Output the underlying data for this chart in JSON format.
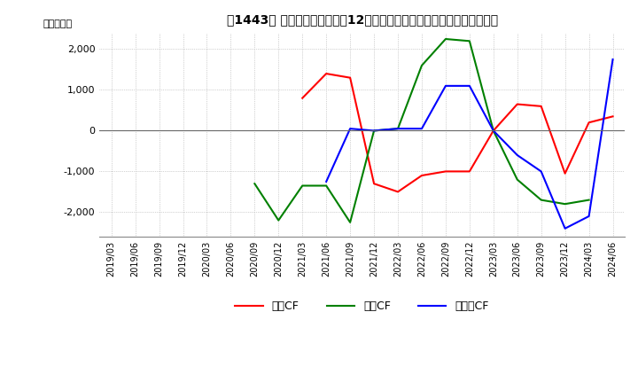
{
  "title": "　1443、 キャッシュフローの12か月移動合計の対前年同期増減額の推移",
  "ylabel": "（百万円）",
  "ylim": [
    -2600,
    2400
  ],
  "yticks": [
    -2000,
    -1000,
    0,
    1000,
    2000
  ],
  "dates": [
    "2019/03",
    "2019/06",
    "2019/09",
    "2019/12",
    "2020/03",
    "2020/06",
    "2020/09",
    "2020/12",
    "2021/03",
    "2021/06",
    "2021/09",
    "2021/12",
    "2022/03",
    "2022/06",
    "2022/09",
    "2022/12",
    "2023/03",
    "2023/06",
    "2023/09",
    "2023/12",
    "2024/03",
    "2024/06"
  ],
  "operating_cf": [
    null,
    null,
    null,
    null,
    null,
    null,
    null,
    null,
    800,
    1400,
    1300,
    -1300,
    -1500,
    -1100,
    -1000,
    -1000,
    0,
    650,
    600,
    -1050,
    200,
    350
  ],
  "investing_cf": [
    null,
    null,
    null,
    null,
    null,
    null,
    -1300,
    -2200,
    -1350,
    -1350,
    -2250,
    0,
    50,
    1600,
    2250,
    2200,
    0,
    -1200,
    -1700,
    -1800,
    -1700,
    null
  ],
  "free_cf": [
    null,
    null,
    null,
    null,
    null,
    null,
    null,
    null,
    null,
    -1250,
    50,
    0,
    50,
    50,
    1100,
    1100,
    0,
    -600,
    -1000,
    -2400,
    -2100,
    1750
  ],
  "color_operating": "#ff0000",
  "color_investing": "#008000",
  "color_free": "#0000ff",
  "legend_labels": [
    "営業CF",
    "投資CF",
    "フリーCF"
  ],
  "background_color": "#ffffff",
  "grid_color": "#aaaaaa"
}
